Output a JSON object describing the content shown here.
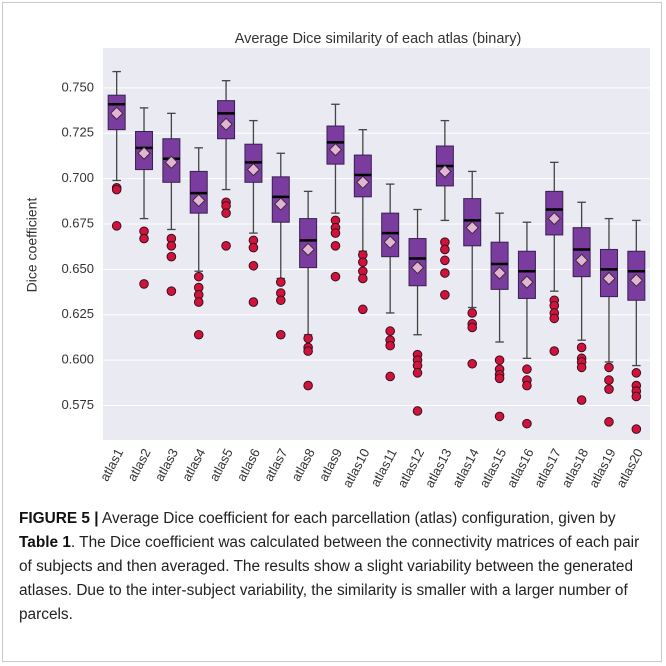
{
  "chart_data": {
    "type": "box",
    "title": "Average Dice similarity of each atlas (binary)",
    "y_label": "Dice coefficient",
    "ylim": [
      0.556,
      0.772
    ],
    "yticks": [
      {
        "value": 0.75,
        "label": "0.750"
      },
      0.725,
      {
        "value": 0.7,
        "label": "0.700"
      },
      0.675,
      {
        "value": 0.65,
        "label": "0.650"
      },
      0.625,
      {
        "value": 0.6,
        "label": "0.600"
      },
      0.575
    ],
    "grid": true,
    "box_color": "#7a3c9e",
    "mean_color": "#e6b3d6",
    "outlier_color": "#d1133c",
    "categories": [
      "atlas1",
      "atlas2",
      "atlas3",
      "atlas4",
      "atlas5",
      "atlas6",
      "atlas7",
      "atlas8",
      "atlas9",
      "atlas10",
      "atlas11",
      "atlas12",
      "atlas13",
      "atlas14",
      "atlas15",
      "atlas16",
      "atlas17",
      "atlas18",
      "atlas19",
      "atlas20"
    ],
    "boxes": [
      {
        "low": 0.699,
        "q1": 0.727,
        "median": 0.741,
        "q3": 0.746,
        "high": 0.759,
        "mean": 0.736,
        "outliers": [
          0.695,
          0.694,
          0.674
        ]
      },
      {
        "low": 0.678,
        "q1": 0.705,
        "median": 0.717,
        "q3": 0.726,
        "high": 0.739,
        "mean": 0.714,
        "outliers": [
          0.671,
          0.667,
          0.642
        ]
      },
      {
        "low": 0.672,
        "q1": 0.698,
        "median": 0.711,
        "q3": 0.722,
        "high": 0.736,
        "mean": 0.709,
        "outliers": [
          0.667,
          0.663,
          0.657,
          0.638
        ]
      },
      {
        "low": 0.649,
        "q1": 0.681,
        "median": 0.692,
        "q3": 0.704,
        "high": 0.717,
        "mean": 0.688,
        "outliers": [
          0.646,
          0.64,
          0.636,
          0.632,
          0.614
        ]
      },
      {
        "low": 0.694,
        "q1": 0.722,
        "median": 0.736,
        "q3": 0.743,
        "high": 0.754,
        "mean": 0.73,
        "outliers": [
          0.687,
          0.685,
          0.681,
          0.663
        ]
      },
      {
        "low": 0.67,
        "q1": 0.698,
        "median": 0.709,
        "q3": 0.719,
        "high": 0.732,
        "mean": 0.705,
        "outliers": [
          0.666,
          0.662,
          0.652,
          0.632
        ]
      },
      {
        "low": 0.645,
        "q1": 0.676,
        "median": 0.69,
        "q3": 0.701,
        "high": 0.714,
        "mean": 0.686,
        "outliers": [
          0.643,
          0.637,
          0.633,
          0.614
        ]
      },
      {
        "low": 0.614,
        "q1": 0.651,
        "median": 0.666,
        "q3": 0.678,
        "high": 0.693,
        "mean": 0.661,
        "outliers": [
          0.612,
          0.607,
          0.605,
          0.586
        ]
      },
      {
        "low": 0.681,
        "q1": 0.708,
        "median": 0.72,
        "q3": 0.729,
        "high": 0.741,
        "mean": 0.716,
        "outliers": [
          0.677,
          0.673,
          0.67,
          0.663,
          0.646
        ]
      },
      {
        "low": 0.66,
        "q1": 0.69,
        "median": 0.702,
        "q3": 0.713,
        "high": 0.727,
        "mean": 0.698,
        "outliers": [
          0.658,
          0.654,
          0.649,
          0.645,
          0.628
        ]
      },
      {
        "low": 0.626,
        "q1": 0.657,
        "median": 0.67,
        "q3": 0.681,
        "high": 0.697,
        "mean": 0.665,
        "outliers": [
          0.616,
          0.611,
          0.608,
          0.591
        ]
      },
      {
        "low": 0.614,
        "q1": 0.641,
        "median": 0.656,
        "q3": 0.667,
        "high": 0.683,
        "mean": 0.651,
        "outliers": [
          0.603,
          0.6,
          0.597,
          0.593,
          0.572
        ]
      },
      {
        "low": 0.677,
        "q1": 0.696,
        "median": 0.707,
        "q3": 0.718,
        "high": 0.732,
        "mean": 0.704,
        "outliers": [
          0.665,
          0.661,
          0.655,
          0.648,
          0.636
        ]
      },
      {
        "low": 0.629,
        "q1": 0.663,
        "median": 0.677,
        "q3": 0.689,
        "high": 0.704,
        "mean": 0.673,
        "outliers": [
          0.626,
          0.62,
          0.618,
          0.598
        ]
      },
      {
        "low": 0.61,
        "q1": 0.639,
        "median": 0.653,
        "q3": 0.665,
        "high": 0.681,
        "mean": 0.648,
        "outliers": [
          0.6,
          0.595,
          0.592,
          0.59,
          0.569
        ]
      },
      {
        "low": 0.601,
        "q1": 0.634,
        "median": 0.649,
        "q3": 0.66,
        "high": 0.676,
        "mean": 0.643,
        "outliers": [
          0.595,
          0.589,
          0.586,
          0.565
        ]
      },
      {
        "low": 0.638,
        "q1": 0.669,
        "median": 0.683,
        "q3": 0.693,
        "high": 0.709,
        "mean": 0.678,
        "outliers": [
          0.633,
          0.63,
          0.626,
          0.623,
          0.605
        ]
      },
      {
        "low": 0.611,
        "q1": 0.646,
        "median": 0.661,
        "q3": 0.673,
        "high": 0.687,
        "mean": 0.655,
        "outliers": [
          0.607,
          0.601,
          0.599,
          0.596,
          0.578
        ]
      },
      {
        "low": 0.599,
        "q1": 0.635,
        "median": 0.65,
        "q3": 0.661,
        "high": 0.678,
        "mean": 0.645,
        "outliers": [
          0.596,
          0.589,
          0.584,
          0.566
        ]
      },
      {
        "low": 0.597,
        "q1": 0.633,
        "median": 0.649,
        "q3": 0.66,
        "high": 0.677,
        "mean": 0.644,
        "outliers": [
          0.593,
          0.586,
          0.583,
          0.58,
          0.562
        ]
      }
    ]
  },
  "caption": {
    "label": "FIGURE 5 |",
    "text_1": " Average Dice coefficient for each parcellation (atlas) configuration, given by ",
    "table_ref": "Table 1",
    "text_2": ". The Dice coefficient was calculated between the connectivity matrices of each pair of subjects and then averaged. The results show a slight variability between the generated atlases. Due to the inter-subject variability, the similarity is smaller with a larger number of parcels."
  }
}
